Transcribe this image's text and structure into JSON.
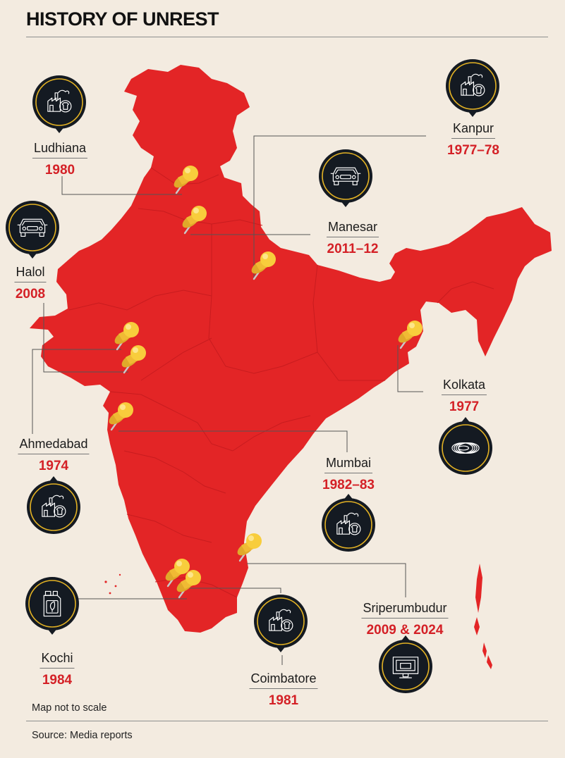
{
  "title": "HISTORY OF UNREST",
  "colors": {
    "background": "#f3ebe0",
    "map": "#e32526",
    "badge": "#141a22",
    "badge_ring": "#e3b224",
    "pin": "#f4c43a",
    "year": "#d42026"
  },
  "locations": [
    {
      "name": "Ludhiana",
      "year": "1980",
      "icon": "factory-icon"
    },
    {
      "name": "Kanpur",
      "year": "1977–78",
      "icon": "factory-icon"
    },
    {
      "name": "Manesar",
      "year": "2011–12",
      "icon": "car-icon"
    },
    {
      "name": "Halol",
      "year": "2008",
      "icon": "car-icon"
    },
    {
      "name": "Kolkata",
      "year": "1977",
      "icon": "cable-coil-icon"
    },
    {
      "name": "Ahmedabad",
      "year": "1974",
      "icon": "factory-icon"
    },
    {
      "name": "Mumbai",
      "year": "1982–83",
      "icon": "factory-icon"
    },
    {
      "name": "Kochi",
      "year": "1984",
      "icon": "oil-canister-icon"
    },
    {
      "name": "Coimbatore",
      "year": "1981",
      "icon": "factory-icon"
    },
    {
      "name": "Sriperumbudur",
      "year": "2009 & 2024",
      "icon": "monitor-icon"
    }
  ],
  "footer": {
    "scale_note": "Map not to scale",
    "source": "Source: Media reports"
  }
}
